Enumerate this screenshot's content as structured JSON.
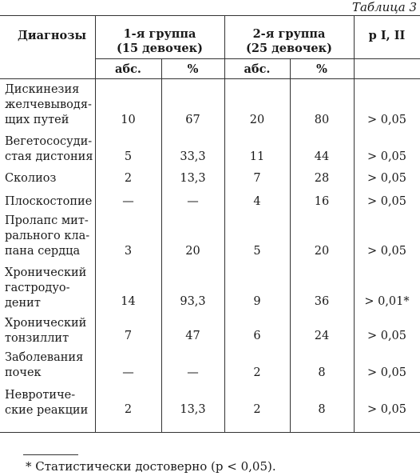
{
  "table_label": "Таблица 3",
  "header": {
    "diag": "Диагнозы",
    "g1_line1": "1-я группа",
    "g1_line2": "(15 девочек)",
    "g2_line1": "2-я группа",
    "g2_line2": "(25 девочек)",
    "p": "p I, II",
    "abs1": "абс.",
    "pct1": "%",
    "abs2": "абс.",
    "pct2": "%"
  },
  "rows": [
    {
      "name": [
        "Дискинезия",
        "желчевыводя-",
        "щих путей"
      ],
      "abs1": "10",
      "pct1": "67",
      "abs2": "20",
      "pct2": "80",
      "p": "> 0,05"
    },
    {
      "name": [
        "Вегетососуди-",
        "стая дистония"
      ],
      "abs1": "5",
      "pct1": "33,3",
      "abs2": "11",
      "pct2": "44",
      "p": "> 0,05"
    },
    {
      "name": [
        "Сколиоз"
      ],
      "abs1": "2",
      "pct1": "13,3",
      "abs2": "7",
      "pct2": "28",
      "p": "> 0,05"
    },
    {
      "name": [
        "Плоскостопие"
      ],
      "abs1": "—",
      "pct1": "—",
      "abs2": "4",
      "pct2": "16",
      "p": "> 0,05"
    },
    {
      "name": [
        "Пролапс мит-",
        "рального кла-",
        "пана сердца"
      ],
      "abs1": "3",
      "pct1": "20",
      "abs2": "5",
      "pct2": "20",
      "p": "> 0,05"
    },
    {
      "name": [
        "Хронический",
        "гастродуо-",
        "денит"
      ],
      "abs1": "14",
      "pct1": "93,3",
      "abs2": "9",
      "pct2": "36",
      "p": "> 0,01*"
    },
    {
      "name": [
        "Хронический",
        "тонзиллит"
      ],
      "abs1": "7",
      "pct1": "47",
      "abs2": "6",
      "pct2": "24",
      "p": "> 0,05"
    },
    {
      "name": [
        "Заболевания",
        "почек"
      ],
      "abs1": "—",
      "pct1": "—",
      "abs2": "2",
      "pct2": "8",
      "p": "> 0,05"
    },
    {
      "name": [
        "Невротиче-",
        "ские реакции"
      ],
      "abs1": "2",
      "pct1": "13,3",
      "abs2": "2",
      "pct2": "8",
      "p": "> 0,05"
    }
  ],
  "footnote": "* Статистически достоверно (p < 0,05)."
}
